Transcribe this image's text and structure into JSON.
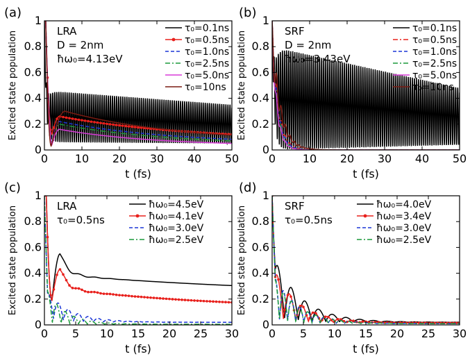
{
  "chart_data": [
    {
      "panel_label": "(a)",
      "type": "line",
      "xlabel": "t (fs)",
      "ylabel": "Excited state population",
      "xlim": [
        0,
        50
      ],
      "ylim": [
        0,
        1
      ],
      "x_ticks": [
        "0",
        "10",
        "20",
        "30",
        "40",
        "50"
      ],
      "y_ticks": [
        "0",
        "0.2",
        "0.4",
        "0.6",
        "0.8",
        "1"
      ],
      "annotations": [
        "LRA",
        "D = 2nm",
        "ħω₀=4.13eV"
      ],
      "legend_position": "top-right",
      "series": [
        {
          "name": "τ₀=0.1ns",
          "color": "#000000",
          "dash": "solid",
          "marker": "none",
          "model": "oscillatory",
          "params": {
            "plateau": 0.26,
            "amp_start": 0.2,
            "amp_end": 0.15,
            "period": 0.55,
            "decay_to": 0.2
          }
        },
        {
          "name": "τ₀=0.5ns",
          "color": "#e8201c",
          "dash": "solid",
          "marker": "dot",
          "model": "smooth",
          "params": {
            "peak_t": 0.35,
            "dip_t": 2.0,
            "dip_v": 0.12,
            "bump_t": 4.0,
            "bump_v": 0.26,
            "end_v": 0.07,
            "tau": 35
          }
        },
        {
          "name": "τ₀=1.0ns",
          "color": "#1a35d6",
          "dash": "dashed",
          "marker": "none",
          "model": "smooth",
          "params": {
            "peak_t": 0.35,
            "dip_t": 2.0,
            "dip_v": 0.06,
            "bump_t": 4.0,
            "bump_v": 0.22,
            "end_v": 0.045,
            "tau": 30
          }
        },
        {
          "name": "τ₀=2.5ns",
          "color": "#1a9a3a",
          "dash": "dashdot",
          "marker": "none",
          "model": "smooth",
          "params": {
            "peak_t": 0.35,
            "dip_t": 2.0,
            "dip_v": 0.05,
            "bump_t": 4.0,
            "bump_v": 0.2,
            "end_v": 0.04,
            "tau": 28
          }
        },
        {
          "name": "τ₀=5.0ns",
          "color": "#d83ad8",
          "dash": "solid",
          "marker": "none",
          "model": "smooth",
          "params": {
            "peak_t": 0.35,
            "dip_t": 2.0,
            "dip_v": 0.04,
            "bump_t": 4.0,
            "bump_v": 0.16,
            "end_v": 0.03,
            "tau": 25
          }
        },
        {
          "name": "τ₀=10ns",
          "color": "#7a1b12",
          "dash": "solid",
          "marker": "none",
          "model": "smooth",
          "params": {
            "peak_t": 0.35,
            "dip_t": 1.8,
            "dip_v": 0.03,
            "bump_t": 5.5,
            "bump_v": 0.3,
            "end_v": 0.06,
            "tau": 30
          }
        }
      ]
    },
    {
      "panel_label": "(b)",
      "type": "line",
      "xlabel": "t (fs)",
      "ylabel": "Excited state population",
      "xlim": [
        0,
        50
      ],
      "ylim": [
        0,
        1
      ],
      "x_ticks": [
        "0",
        "10",
        "20",
        "30",
        "40",
        "50"
      ],
      "y_ticks": [
        "0",
        "0.2",
        "0.4",
        "0.6",
        "0.8",
        "1"
      ],
      "annotations": [
        "SRF",
        "D = 2nm",
        "ħω₀=3.43eV"
      ],
      "legend_position": "top-right",
      "series": [
        {
          "name": "τ₀=0.1ns",
          "color": "#000000",
          "dash": "solid",
          "marker": "none",
          "model": "oscillatory",
          "params": {
            "plateau": 0.4,
            "amp_start": 0.4,
            "amp_end": 0.22,
            "period": 0.55,
            "decay_to": 0.26
          }
        },
        {
          "name": "τ₀=0.5ns",
          "color": "#e8201c",
          "dash": "dashdot",
          "marker": "none",
          "model": "fastdecay",
          "params": {
            "tau": 1.6,
            "osc": 0.1
          }
        },
        {
          "name": "τ₀=1.0ns",
          "color": "#1a35d6",
          "dash": "dashed",
          "marker": "none",
          "model": "fastdecay",
          "params": {
            "tau": 1.5,
            "osc": 0.1
          }
        },
        {
          "name": "τ₀=2.5ns",
          "color": "#1a9a3a",
          "dash": "dashdot",
          "marker": "none",
          "model": "fastdecay",
          "params": {
            "tau": 1.4,
            "osc": 0.1
          }
        },
        {
          "name": "τ₀=5.0ns",
          "color": "#d83ad8",
          "dash": "solid",
          "marker": "none",
          "model": "fastdecay",
          "params": {
            "tau": 1.3,
            "osc": 0.1
          }
        },
        {
          "name": "τ₀=10ns",
          "color": "#7a1b12",
          "dash": "solid",
          "marker": "none",
          "model": "fastdecay",
          "params": {
            "tau": 2.2,
            "osc": 0.15
          }
        }
      ]
    },
    {
      "panel_label": "(c)",
      "type": "line",
      "xlabel": "t (fs)",
      "ylabel": "Excited state population",
      "xlim": [
        0,
        30
      ],
      "ylim": [
        0,
        1
      ],
      "x_ticks": [
        "0",
        "5",
        "10",
        "15",
        "20",
        "25",
        "30"
      ],
      "y_ticks": [
        "0",
        "0.2",
        "0.4",
        "0.6",
        "0.8",
        "1"
      ],
      "annotations": [
        "LRA",
        "τ₀=0.5ns"
      ],
      "legend_position": "top-right",
      "series": [
        {
          "name": "ħω₀=4.5eV",
          "color": "#000000",
          "dash": "solid",
          "marker": "none",
          "model": "smooth",
          "params": {
            "peak_t": 0.3,
            "dip_t": 1.2,
            "dip_v": 0.19,
            "bump_t": 2.5,
            "bump_v": 0.55,
            "end_v": 0.22,
            "tau": 40,
            "shoulder": 0.38
          }
        },
        {
          "name": "ħω₀=4.1eV",
          "color": "#e8201c",
          "dash": "solid",
          "marker": "dot",
          "model": "smooth",
          "params": {
            "peak_t": 0.3,
            "dip_t": 1.2,
            "dip_v": 0.19,
            "bump_t": 2.5,
            "bump_v": 0.43,
            "end_v": 0.12,
            "tau": 25,
            "shoulder": 0.27
          }
        },
        {
          "name": "ħω₀=3.0eV",
          "color": "#1a35d6",
          "dash": "dashed",
          "marker": "none",
          "model": "damped",
          "params": {
            "floor": 0.04,
            "amp": 0.22,
            "period": 1.6,
            "tau": 4.0,
            "end_v": 0.02
          }
        },
        {
          "name": "ħω₀=2.5eV",
          "color": "#1a9a3a",
          "dash": "dashdot",
          "marker": "none",
          "model": "damped",
          "params": {
            "floor": 0.02,
            "amp": 0.28,
            "period": 1.4,
            "tau": 3.0,
            "end_v": 0.005
          }
        }
      ]
    },
    {
      "panel_label": "(d)",
      "type": "line",
      "xlabel": "t (fs)",
      "ylabel": "Excited state population",
      "xlim": [
        0,
        30
      ],
      "ylim": [
        0,
        1
      ],
      "x_ticks": [
        "0",
        "5",
        "10",
        "15",
        "20",
        "25",
        "30"
      ],
      "y_ticks": [
        "0",
        "0.2",
        "0.4",
        "0.6",
        "0.8",
        "1"
      ],
      "annotations": [
        "SRF",
        "τ₀=0.5ns"
      ],
      "legend_position": "top-right",
      "series": [
        {
          "name": "ħω₀=4.0eV",
          "color": "#000000",
          "dash": "solid",
          "marker": "none",
          "model": "damped",
          "params": {
            "floor": 0.05,
            "amp": 0.48,
            "period": 2.2,
            "tau": 4.5,
            "end_v": 0.02
          }
        },
        {
          "name": "ħω₀=3.4eV",
          "color": "#e8201c",
          "dash": "solid",
          "marker": "dot",
          "model": "damped",
          "params": {
            "floor": 0.05,
            "amp": 0.4,
            "period": 2.0,
            "tau": 4.0,
            "end_v": 0.015
          }
        },
        {
          "name": "ħω₀=3.0eV",
          "color": "#1a35d6",
          "dash": "dashed",
          "marker": "none",
          "model": "damped",
          "params": {
            "floor": 0.04,
            "amp": 0.36,
            "period": 1.3,
            "tau": 4.0,
            "end_v": 0.01
          }
        },
        {
          "name": "ħω₀=2.5eV",
          "color": "#1a9a3a",
          "dash": "dashdot",
          "marker": "none",
          "model": "damped",
          "params": {
            "floor": 0.04,
            "amp": 0.34,
            "period": 1.3,
            "tau": 4.0,
            "end_v": 0.01
          }
        }
      ]
    }
  ]
}
